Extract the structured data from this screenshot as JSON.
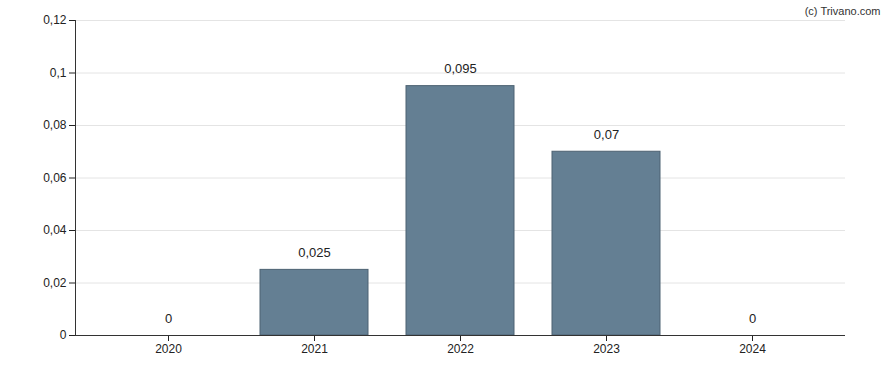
{
  "chart_data": {
    "type": "bar",
    "annotations": [
      "(c) Trivano.com"
    ],
    "categories": [
      "2020",
      "2021",
      "2022",
      "2023",
      "2024"
    ],
    "values": [
      0,
      0.025,
      0.095,
      0.07,
      0
    ],
    "value_labels": [
      "0",
      "0,025",
      "0,095",
      "0,07",
      "0"
    ],
    "data_labels": true,
    "color": "#647f93",
    "ylim": [
      0,
      0.12
    ],
    "yticks": [
      0,
      {
        "value": 0.02,
        "label": "0,02"
      },
      {
        "value": 0.04,
        "label": "0,04"
      },
      {
        "value": 0.06,
        "label": "0,06"
      },
      {
        "value": 0.08,
        "label": "0,08"
      },
      {
        "value": 0.1,
        "label": "0,1"
      },
      {
        "value": 0.12,
        "label": "0,12"
      }
    ],
    "grid": true
  }
}
